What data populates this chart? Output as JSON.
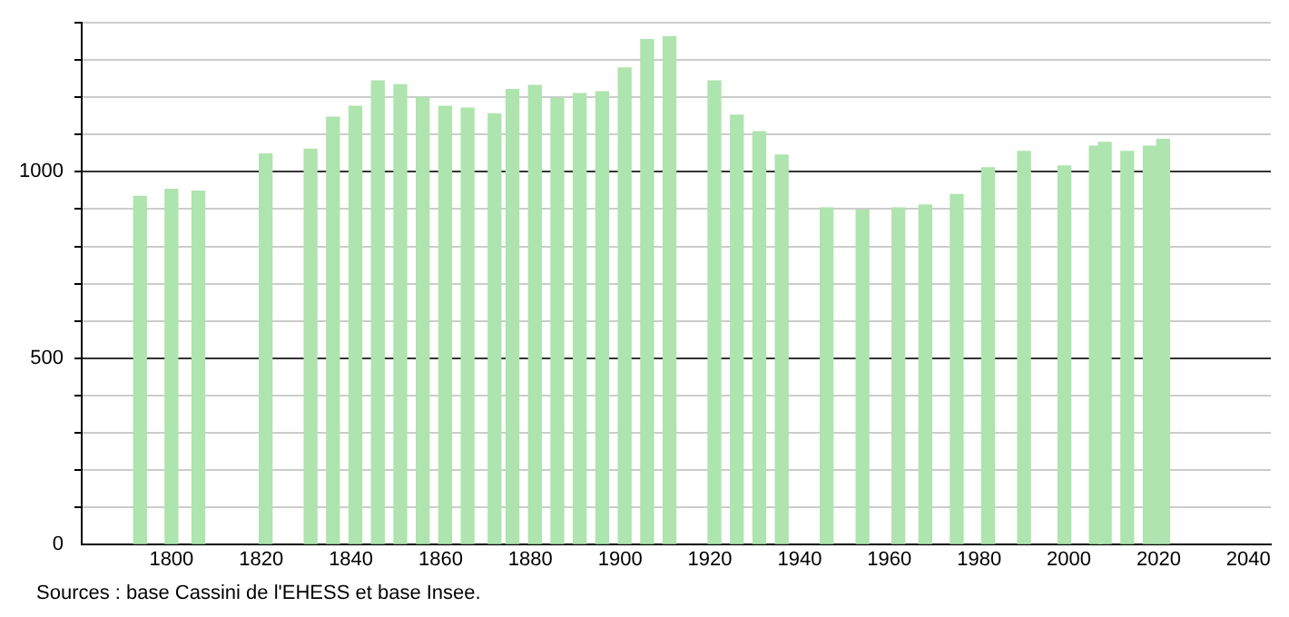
{
  "chart_data": {
    "type": "bar",
    "annotations": [
      "Sources : base Cassini de l'EHESS et base Insee."
    ],
    "x": [
      1793,
      1800,
      1806,
      1821,
      1831,
      1836,
      1841,
      1846,
      1851,
      1856,
      1861,
      1866,
      1872,
      1876,
      1881,
      1886,
      1891,
      1896,
      1901,
      1906,
      1911,
      1921,
      1926,
      1931,
      1936,
      1946,
      1954,
      1962,
      1968,
      1975,
      1982,
      1990,
      1999,
      2006,
      2008,
      2013,
      2018,
      2021
    ],
    "values": [
      934,
      953,
      948,
      1048,
      1061,
      1147,
      1176,
      1244,
      1234,
      1200,
      1176,
      1171,
      1156,
      1221,
      1232,
      1198,
      1210,
      1215,
      1279,
      1355,
      1363,
      1244,
      1152,
      1108,
      1045,
      903,
      897,
      903,
      911,
      939,
      1011,
      1055,
      1016,
      1069,
      1079,
      1055,
      1069,
      1087
    ],
    "color": "#aee4ae",
    "xlim": [
      1780,
      2045
    ],
    "xticks": [
      1800,
      1820,
      1840,
      1860,
      1880,
      1900,
      1920,
      1940,
      1960,
      1980,
      2000,
      2020,
      2040
    ],
    "ylim": [
      0,
      1400
    ],
    "yticks": [
      0,
      {
        "value": 100,
        "label": null
      },
      {
        "value": 200,
        "label": null
      },
      {
        "value": 300,
        "label": null
      },
      {
        "value": 400,
        "label": null
      },
      500,
      {
        "value": 600,
        "label": null
      },
      {
        "value": 700,
        "label": null
      },
      {
        "value": 800,
        "label": null
      },
      {
        "value": 900,
        "label": null
      },
      1000,
      {
        "value": 1100,
        "label": null
      },
      {
        "value": 1200,
        "label": null
      },
      {
        "value": 1300,
        "label": null
      },
      {
        "value": 1400,
        "label": null
      }
    ],
    "grid": "y",
    "legend": false
  }
}
